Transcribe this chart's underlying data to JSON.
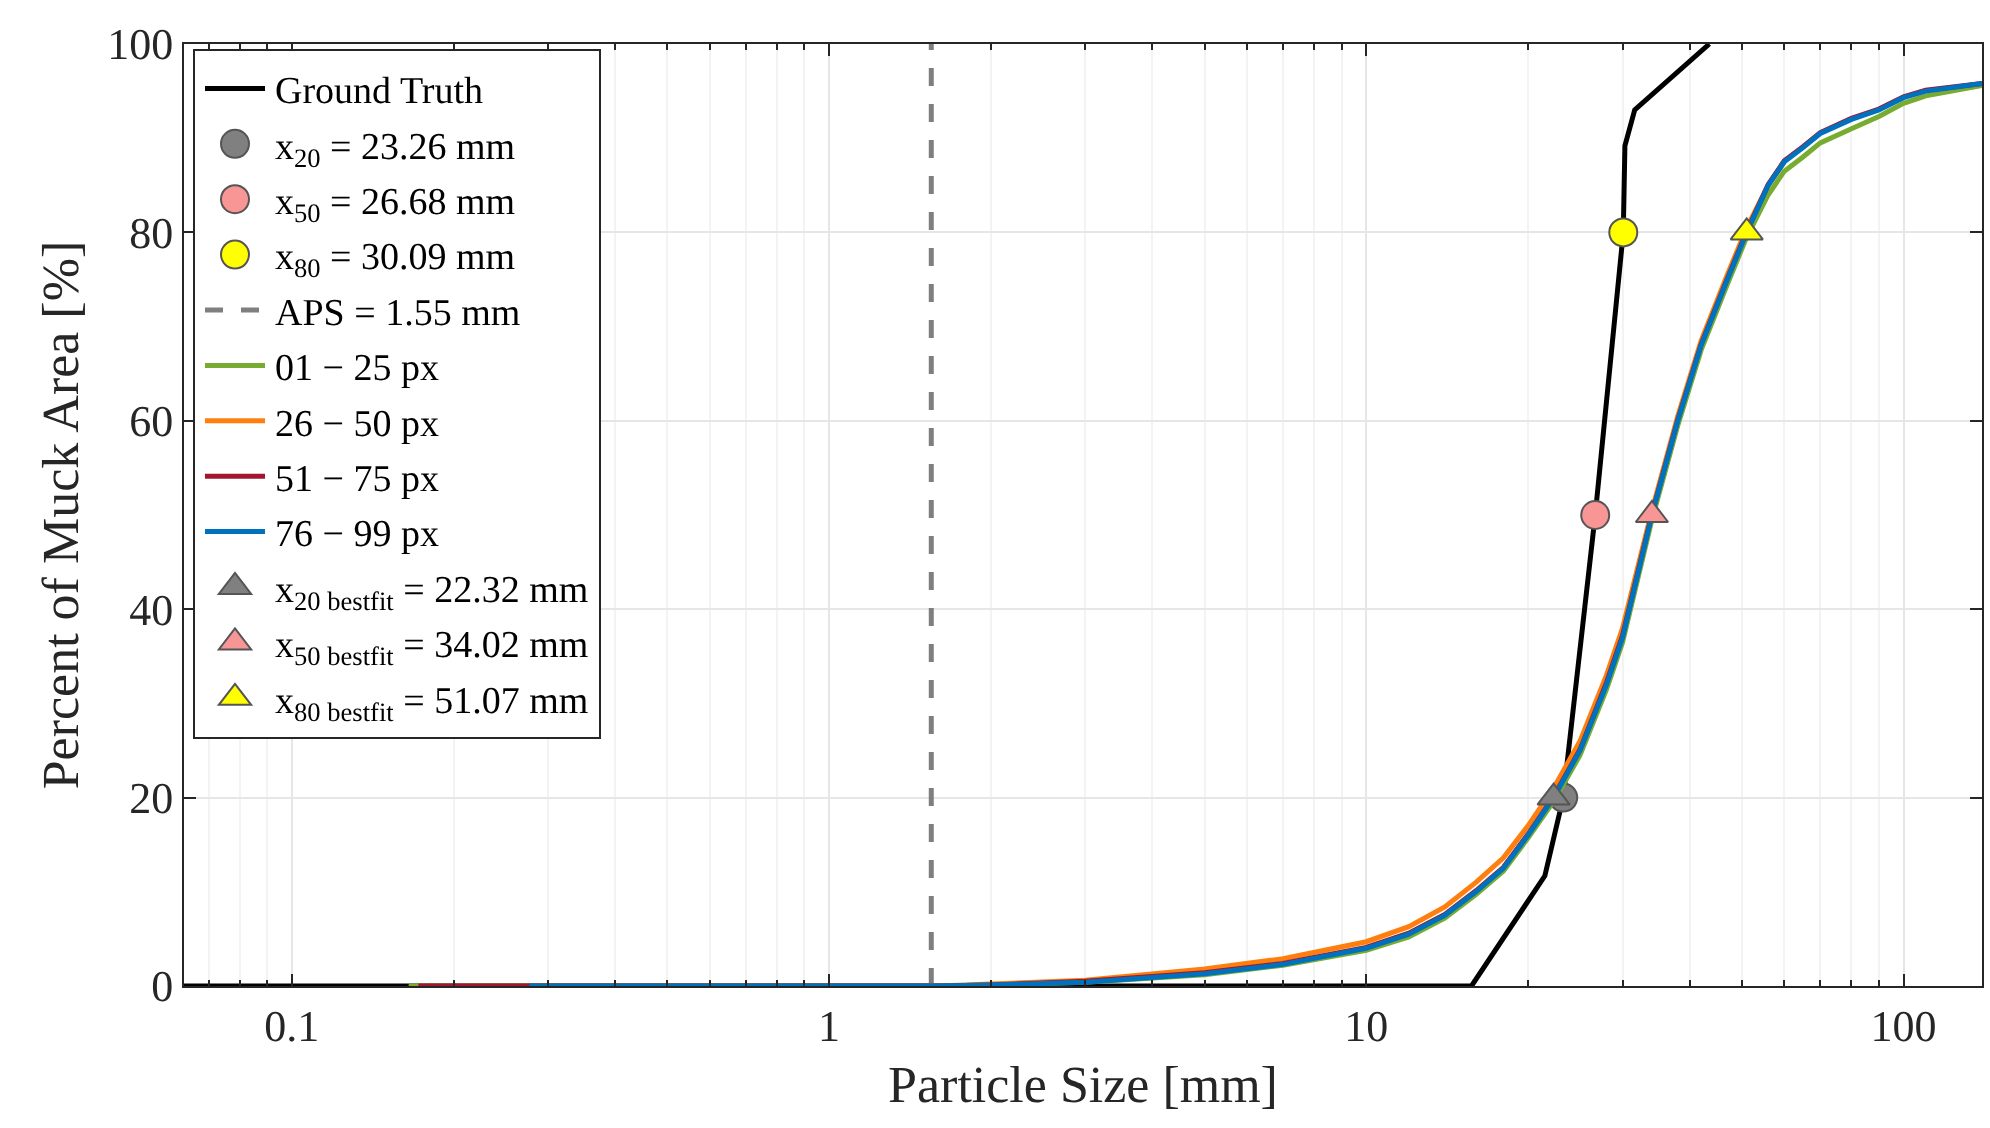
{
  "chart_data": {
    "type": "line",
    "xlabel": "Particle Size [mm]",
    "ylabel": "Percent of Muck Area [%]",
    "log": "x",
    "grid": true,
    "legend": "top left",
    "xlim": [
      0.063,
      140
    ],
    "xticks": [
      0.1,
      1,
      10,
      100
    ],
    "ylim": [
      0,
      100
    ],
    "yticks": [
      0,
      20,
      40,
      60,
      80,
      100
    ],
    "series": [
      {
        "name": "Ground Truth",
        "color": "#000000",
        "line_style": "solid",
        "x": [
          0.063,
          15.7,
          21.5,
          23.26,
          26.68,
          30.09,
          30.3,
          31.6,
          43.5
        ],
        "values": [
          0,
          0,
          11.7,
          20,
          50,
          80,
          89.2,
          93,
          100
        ]
      },
      {
        "name": "x$_{20}$ = 23.26 mm",
        "type": "scatter",
        "marker": "circle",
        "color": "#808080",
        "x": [
          23.26
        ],
        "values": [
          20
        ]
      },
      {
        "name": "x$_{50}$ = 26.68 mm",
        "type": "scatter",
        "marker": "circle",
        "color": "#f89595",
        "x": [
          26.68
        ],
        "values": [
          50
        ]
      },
      {
        "name": "x$_{80}$ = 30.09 mm",
        "type": "scatter",
        "marker": "circle",
        "color": "#ffff00",
        "x": [
          30.09
        ],
        "values": [
          80
        ]
      },
      {
        "name": "APS = 1.55 mm",
        "color": "#7f7f7f",
        "line_style": "dashed",
        "x": [
          1.55,
          1.55
        ],
        "values": [
          0,
          100
        ]
      },
      {
        "name": "01 − 25 px",
        "color": "#77ac30",
        "line_style": "solid",
        "x": [
          0.165,
          1.6,
          2,
          3,
          5,
          7,
          10,
          12,
          14,
          16,
          18,
          20,
          22.32,
          25,
          28,
          30,
          34.02,
          38,
          42,
          47,
          51.07,
          56,
          60,
          65,
          70,
          80,
          90,
          100,
          110,
          140
        ],
        "values": [
          0,
          0,
          0.1,
          0.4,
          1.2,
          2.2,
          3.8,
          5.2,
          7.2,
          9.7,
          12.2,
          15.7,
          19.6,
          24.5,
          31.5,
          36.5,
          49.5,
          59.5,
          67.5,
          74.5,
          79.5,
          84,
          86.5,
          88,
          89.5,
          91,
          92.3,
          93.7,
          94.5,
          95.6
        ]
      },
      {
        "name": "26 − 50 px",
        "color": "#ff7f0e",
        "line_style": "solid",
        "x": [
          0.28,
          1.6,
          2,
          3,
          5,
          7,
          10,
          12,
          14,
          16,
          18,
          20,
          22.32,
          25,
          28,
          30,
          34.02,
          38,
          42,
          47,
          51.07,
          56,
          60
        ],
        "values": [
          0,
          0,
          0.2,
          0.6,
          1.8,
          2.9,
          4.7,
          6.3,
          8.4,
          11,
          13.6,
          17,
          21,
          26,
          33,
          38,
          50.5,
          60.5,
          68.5,
          75.5,
          80.5,
          85,
          87.5
        ]
      },
      {
        "name": "51 − 75 px",
        "color": "#a2142f",
        "line_style": "solid",
        "x": [
          0.172,
          1.6,
          2,
          3,
          5,
          7,
          10,
          12,
          14,
          16,
          18,
          20,
          22.32,
          25,
          28,
          30,
          34.02,
          38,
          42,
          47,
          51.07,
          56,
          60,
          65,
          70,
          80,
          90,
          100,
          110,
          140
        ],
        "values": [
          0,
          0,
          0.1,
          0.5,
          1.4,
          2.4,
          4.1,
          5.6,
          7.6,
          10.1,
          12.6,
          16.1,
          20.1,
          25.1,
          32.2,
          37.2,
          50.1,
          60.1,
          68.1,
          75.1,
          80.1,
          85.1,
          87.6,
          89.1,
          90.6,
          92.1,
          93.1,
          94.4,
          95.1,
          95.8
        ]
      },
      {
        "name": "76 − 99 px",
        "color": "#0072bd",
        "line_style": "solid",
        "x": [
          0.277,
          1.6,
          2,
          3,
          5,
          7,
          10,
          12,
          14,
          16,
          18,
          20,
          22.32,
          25,
          28,
          30,
          34.02,
          38,
          42,
          47,
          51.07,
          56,
          60,
          65,
          70,
          80,
          90,
          100,
          110,
          140
        ],
        "values": [
          0,
          0,
          0.1,
          0.4,
          1.3,
          2.3,
          4,
          5.5,
          7.5,
          10,
          12.5,
          16,
          20,
          25,
          32,
          37,
          50,
          60,
          68,
          75,
          80,
          85,
          87.5,
          89,
          90.5,
          92,
          93,
          94.3,
          95,
          95.8
        ]
      },
      {
        "name": "x$_{20 bestfit}$ = 22.32 mm",
        "type": "scatter",
        "marker": "triangle",
        "color": "#808080",
        "x": [
          22.32
        ],
        "values": [
          20
        ]
      },
      {
        "name": "x$_{50 bestfit}$ = 34.02 mm",
        "type": "scatter",
        "marker": "triangle",
        "color": "#f89595",
        "x": [
          34.02
        ],
        "values": [
          50
        ]
      },
      {
        "name": "x$_{80 bestfit}$ = 51.07 mm",
        "type": "scatter",
        "marker": "triangle",
        "color": "#ffff00",
        "x": [
          51.07
        ],
        "values": [
          80
        ]
      }
    ]
  }
}
